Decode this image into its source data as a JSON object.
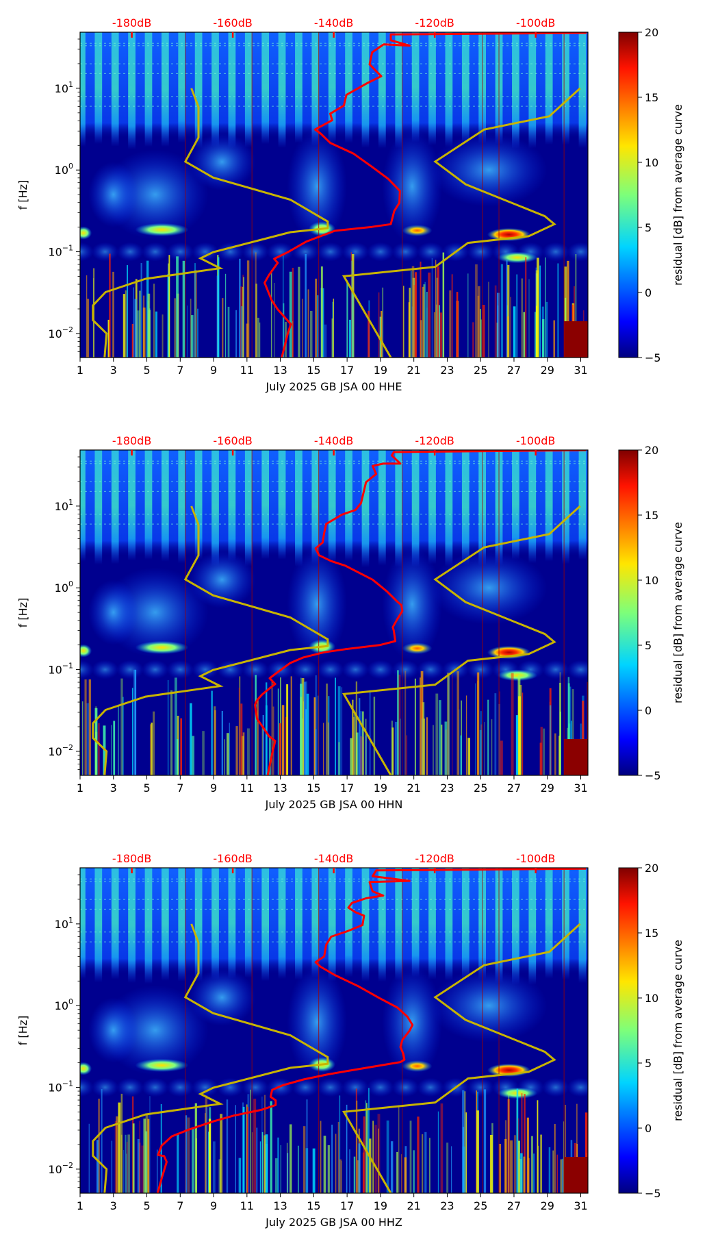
{
  "colors": {
    "noise_model_curve": "#c8b400",
    "station_psd_curve": "#ff0000",
    "db_axis_text": "#ff0000",
    "jet_colormap": [
      "#00007f",
      "#0000ff",
      "#00ffff",
      "#7fff7f",
      "#ffff00",
      "#ff0000",
      "#7f0000"
    ]
  },
  "chart_data": [
    {
      "type": "heatmap",
      "title": "",
      "xlabel": "July 2025 GB JSA 00 HHE",
      "ylabel": "f [Hz]",
      "x_unit": "day of month",
      "xlim": [
        1,
        31.43
      ],
      "x_ticks": [
        "1",
        "3",
        "5",
        "7",
        "9",
        "11",
        "13",
        "15",
        "17",
        "19",
        "21",
        "23",
        "25",
        "27",
        "29",
        "31"
      ],
      "y_scale": "log",
      "ylim_hz": [
        0.005,
        48.5
      ],
      "y_ticks": [
        {
          "base": "10",
          "exp": "1",
          "value": 1
        },
        {
          "base": "10",
          "exp": "0",
          "value": 0
        },
        {
          "base": "10",
          "exp": "−1",
          "value": -1
        },
        {
          "base": "10",
          "exp": "−2",
          "value": -2
        }
      ],
      "top_axis": {
        "unit": "dB",
        "ticks": [
          {
            "label": "-180dB",
            "value": -180
          },
          {
            "label": "-160dB",
            "value": -160
          },
          {
            "label": "-140dB",
            "value": -140
          },
          {
            "label": "-120dB",
            "value": -120
          },
          {
            "label": "-100dB",
            "value": -100
          }
        ]
      },
      "colorbar": {
        "label": "residual [dB] from average curve",
        "range": [
          -5,
          20
        ],
        "ticks": [
          "−5",
          "0",
          "5",
          "10",
          "15",
          "20"
        ],
        "tick_values": [
          -5,
          0,
          5,
          10,
          15,
          20
        ]
      },
      "psd_curve_db_log10hz": [
        [
          -150.3,
          -2.293
        ],
        [
          -149.1,
          -2.0
        ],
        [
          -148.5,
          -1.886
        ],
        [
          -151.1,
          -1.706
        ],
        [
          -152.3,
          -1.592
        ],
        [
          -153.7,
          -1.38
        ],
        [
          -152.8,
          -1.282
        ],
        [
          -151.1,
          -1.136
        ],
        [
          -151.8,
          -1.087
        ],
        [
          -149.1,
          -1.005
        ],
        [
          -145.4,
          -0.875
        ],
        [
          -139.8,
          -0.744
        ],
        [
          -132.4,
          -0.695
        ],
        [
          -128.7,
          -0.663
        ],
        [
          -128.0,
          -0.5
        ],
        [
          -127.0,
          -0.402
        ],
        [
          -126.9,
          -0.255
        ],
        [
          -129.2,
          -0.109
        ],
        [
          -132.4,
          0.038
        ],
        [
          -136.1,
          0.201
        ],
        [
          -140.7,
          0.332
        ],
        [
          -142.6,
          0.446
        ],
        [
          -143.7,
          0.495
        ],
        [
          -140.3,
          0.609
        ],
        [
          -140.7,
          0.69
        ],
        [
          -138.0,
          0.788
        ],
        [
          -137.5,
          0.919
        ],
        [
          -133.3,
          1.065
        ],
        [
          -130.6,
          1.147
        ],
        [
          -132.9,
          1.293
        ],
        [
          -132.4,
          1.44
        ],
        [
          -130.1,
          1.538
        ],
        [
          -125.0,
          1.522
        ],
        [
          -128.7,
          1.587
        ],
        [
          -128.7,
          1.659
        ],
        [
          -89.9,
          1.678
        ]
      ]
    },
    {
      "type": "heatmap",
      "title": "",
      "xlabel": "July 2025 GB JSA 00 HHN",
      "ylabel": "f [Hz]",
      "x_unit": "day of month",
      "xlim": [
        1,
        31.43
      ],
      "x_ticks": [
        "1",
        "3",
        "5",
        "7",
        "9",
        "11",
        "13",
        "15",
        "17",
        "19",
        "21",
        "23",
        "25",
        "27",
        "29",
        "31"
      ],
      "y_scale": "log",
      "ylim_hz": [
        0.005,
        48.5
      ],
      "y_ticks": [
        {
          "base": "10",
          "exp": "1",
          "value": 1
        },
        {
          "base": "10",
          "exp": "0",
          "value": 0
        },
        {
          "base": "10",
          "exp": "−1",
          "value": -1
        },
        {
          "base": "10",
          "exp": "−2",
          "value": -2
        }
      ],
      "top_axis": {
        "unit": "dB",
        "ticks": [
          {
            "label": "-180dB",
            "value": -180
          },
          {
            "label": "-160dB",
            "value": -160
          },
          {
            "label": "-140dB",
            "value": -140
          },
          {
            "label": "-120dB",
            "value": -120
          },
          {
            "label": "-100dB",
            "value": -100
          }
        ]
      },
      "colorbar": {
        "label": "residual [dB] from average curve",
        "range": [
          -5,
          20
        ],
        "ticks": [
          "−5",
          "0",
          "5",
          "10",
          "15",
          "20"
        ],
        "tick_values": [
          -5,
          0,
          5,
          10,
          15,
          20
        ]
      },
      "psd_curve_db_log10hz": [
        [
          -153.1,
          -2.298
        ],
        [
          -152.2,
          -2.029
        ],
        [
          -151.6,
          -1.873
        ],
        [
          -152.8,
          -1.816
        ],
        [
          -153.9,
          -1.716
        ],
        [
          -155.2,
          -1.603
        ],
        [
          -155.6,
          -1.433
        ],
        [
          -155.2,
          -1.376
        ],
        [
          -154.2,
          -1.305
        ],
        [
          -152.5,
          -1.22
        ],
        [
          -151.6,
          -1.177
        ],
        [
          -152.7,
          -1.106
        ],
        [
          -151.5,
          -1.05
        ],
        [
          -148.7,
          -0.922
        ],
        [
          -146.0,
          -0.851
        ],
        [
          -141.9,
          -0.788
        ],
        [
          -137.7,
          -0.751
        ],
        [
          -130.9,
          -0.7
        ],
        [
          -127.8,
          -0.652
        ],
        [
          -128.1,
          -0.524
        ],
        [
          -128.3,
          -0.482
        ],
        [
          -127.4,
          -0.382
        ],
        [
          -126.4,
          -0.283
        ],
        [
          -126.6,
          -0.212
        ],
        [
          -127.4,
          -0.17
        ],
        [
          -129.5,
          -0.042
        ],
        [
          -132.3,
          0.1
        ],
        [
          -137.7,
          0.271
        ],
        [
          -140.5,
          0.327
        ],
        [
          -142.9,
          0.398
        ],
        [
          -143.6,
          0.483
        ],
        [
          -142.2,
          0.554
        ],
        [
          -141.9,
          0.668
        ],
        [
          -141.5,
          0.781
        ],
        [
          -138.4,
          0.895
        ],
        [
          -135.7,
          0.952
        ],
        [
          -134.6,
          1.037
        ],
        [
          -133.6,
          1.292
        ],
        [
          -131.6,
          1.392
        ],
        [
          -132.3,
          1.491
        ],
        [
          -130.2,
          1.519
        ],
        [
          -126.8,
          1.519
        ],
        [
          -128.5,
          1.619
        ],
        [
          -128.1,
          1.661
        ],
        [
          -90.0,
          1.684
        ]
      ]
    },
    {
      "type": "heatmap",
      "title": "",
      "xlabel": "July 2025 GB JSA 00 HHZ",
      "ylabel": "f [Hz]",
      "x_unit": "day of month",
      "xlim": [
        1,
        31.43
      ],
      "x_ticks": [
        "1",
        "3",
        "5",
        "7",
        "9",
        "11",
        "13",
        "15",
        "17",
        "19",
        "21",
        "23",
        "25",
        "27",
        "29",
        "31"
      ],
      "y_scale": "log",
      "ylim_hz": [
        0.005,
        48.5
      ],
      "y_ticks": [
        {
          "base": "10",
          "exp": "1",
          "value": 1
        },
        {
          "base": "10",
          "exp": "0",
          "value": 0
        },
        {
          "base": "10",
          "exp": "−1",
          "value": -1
        },
        {
          "base": "10",
          "exp": "−2",
          "value": -2
        }
      ],
      "top_axis": {
        "unit": "dB",
        "ticks": [
          {
            "label": "-180dB",
            "value": -180
          },
          {
            "label": "-160dB",
            "value": -160
          },
          {
            "label": "-140dB",
            "value": -140
          },
          {
            "label": "-120dB",
            "value": -120
          },
          {
            "label": "-100dB",
            "value": -100
          }
        ]
      },
      "colorbar": {
        "label": "residual [dB] from average curve",
        "range": [
          -5,
          20
        ],
        "ticks": [
          "−5",
          "0",
          "5",
          "10",
          "15",
          "20"
        ],
        "tick_values": [
          -5,
          0,
          5,
          10,
          15,
          20
        ]
      },
      "psd_curve_db_log10hz": [
        [
          -174.9,
          -2.295
        ],
        [
          -174.0,
          -2.096
        ],
        [
          -173.1,
          -1.912
        ],
        [
          -173.6,
          -1.841
        ],
        [
          -174.8,
          -1.827
        ],
        [
          -174.1,
          -1.713
        ],
        [
          -172.1,
          -1.599
        ],
        [
          -168.6,
          -1.514
        ],
        [
          -163.8,
          -1.415
        ],
        [
          -159.7,
          -1.344
        ],
        [
          -154.2,
          -1.273
        ],
        [
          -151.5,
          -1.216
        ],
        [
          -151.5,
          -1.159
        ],
        [
          -152.5,
          -1.116
        ],
        [
          -152.2,
          -1.031
        ],
        [
          -150.1,
          -0.974
        ],
        [
          -146.0,
          -0.903
        ],
        [
          -141.2,
          -0.841
        ],
        [
          -136.4,
          -0.79
        ],
        [
          -126.8,
          -0.69
        ],
        [
          -126.0,
          -0.662
        ],
        [
          -126.2,
          -0.591
        ],
        [
          -126.8,
          -0.506
        ],
        [
          -126.4,
          -0.42
        ],
        [
          -125.0,
          -0.307
        ],
        [
          -124.4,
          -0.236
        ],
        [
          -125.4,
          -0.136
        ],
        [
          -127.4,
          -0.023
        ],
        [
          -130.9,
          0.091
        ],
        [
          -135.0,
          0.233
        ],
        [
          -139.8,
          0.375
        ],
        [
          -142.6,
          0.475
        ],
        [
          -143.6,
          0.531
        ],
        [
          -141.9,
          0.602
        ],
        [
          -141.5,
          0.744
        ],
        [
          -140.5,
          0.844
        ],
        [
          -137.1,
          0.915
        ],
        [
          -134.3,
          0.986
        ],
        [
          -134.0,
          1.1
        ],
        [
          -135.7,
          1.142
        ],
        [
          -137.1,
          1.199
        ],
        [
          -136.4,
          1.256
        ],
        [
          -133.6,
          1.313
        ],
        [
          -130.2,
          1.347
        ],
        [
          -132.3,
          1.398
        ],
        [
          -132.9,
          1.512
        ],
        [
          -125.0,
          1.526
        ],
        [
          -132.3,
          1.583
        ],
        [
          -131.6,
          1.654
        ],
        [
          -90.0,
          1.676
        ]
      ]
    }
  ],
  "noise_models": {
    "low_noise_model_db_log10hz": [
      [
        -185.4,
        -2.293
      ],
      [
        -185.0,
        -2.0
      ],
      [
        -187.7,
        -1.837
      ],
      [
        -187.7,
        -1.657
      ],
      [
        -185.2,
        -1.494
      ],
      [
        -177.3,
        -1.331
      ],
      [
        -162.5,
        -1.201
      ],
      [
        -166.4,
        -1.08
      ],
      [
        -163.9,
        -1.005
      ],
      [
        -148.6,
        -0.761
      ],
      [
        -141.2,
        -0.712
      ],
      [
        -141.2,
        -0.63
      ],
      [
        -148.6,
        -0.363
      ],
      [
        -163.9,
        -0.092
      ],
      [
        -169.4,
        0.103
      ],
      [
        -166.8,
        0.397
      ],
      [
        -166.8,
        0.772
      ],
      [
        -168.2,
        1.0
      ]
    ],
    "high_noise_model_db_log10hz": [
      [
        -128.7,
        -2.293
      ],
      [
        -138.0,
        -1.299
      ],
      [
        -119.9,
        -1.185
      ],
      [
        -113.4,
        -0.891
      ],
      [
        -101.4,
        -0.81
      ],
      [
        -96.3,
        -0.663
      ],
      [
        -98.2,
        -0.565
      ],
      [
        -113.9,
        -0.174
      ],
      [
        -119.9,
        0.103
      ],
      [
        -110.2,
        0.495
      ],
      [
        -97.3,
        0.658
      ],
      [
        -91.2,
        1.0
      ]
    ]
  }
}
